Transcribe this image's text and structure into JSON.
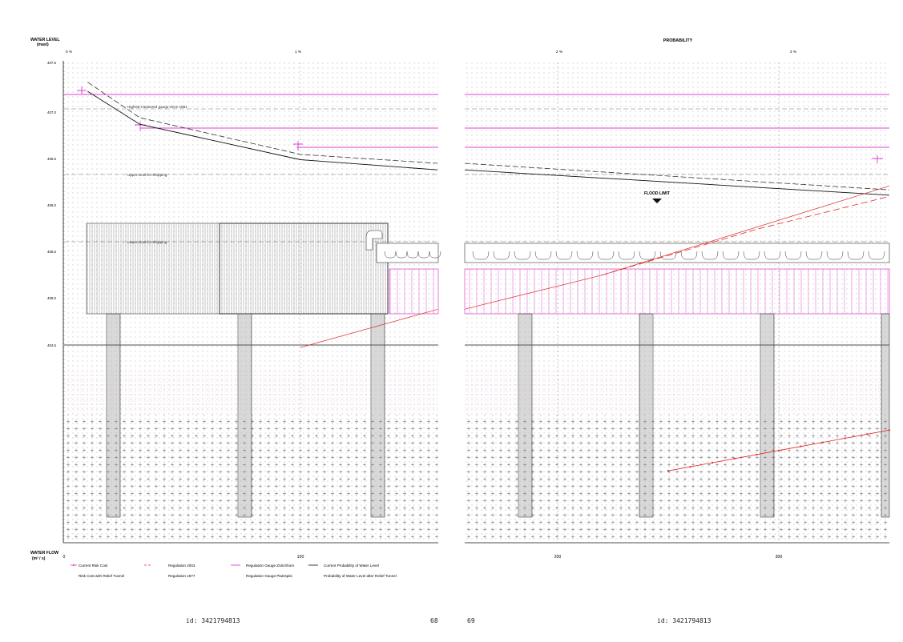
{
  "axes": {
    "y_title_line1": "WATER LEVEL",
    "y_title_line2": "(masl)",
    "x_bottom_title_line1": "WATER FLOW",
    "x_bottom_title_line2": "(m³ / s)",
    "x_top_title": "PROBABILITY"
  },
  "annotations": {
    "highest_gauge": "Highest measured gauge since 1881",
    "upper_shipping": "Upper Limit for Shipping",
    "lower_shipping": "Lower Limit for Shipping",
    "flood_limit": "FLOOD LIMIT"
  },
  "legend": {
    "current_risk": "Current Risk Cost",
    "risk_relief": "Risk Cost with Relief Tunnel",
    "reg_2003": "Regulation 2003",
    "reg_1977": "Regulation 1977",
    "gauge_zurichhorn": "Regulation Gauge Zürichhorn",
    "gauge_platzspitz": "Regulation Gauge Platzspitz",
    "current_prob": "Current Probability of Water Level",
    "prob_after": "Probability of Water Level after Relief Tunnel"
  },
  "footer": {
    "left_id": "id: 3421794813",
    "left_page": "68",
    "right_page": "69",
    "right_id": "id: 3421794813"
  },
  "colors": {
    "magenta": "#e040d0",
    "red": "#e02a2a",
    "black": "#111111",
    "grid": "#9a9a9a"
  },
  "chart_data": {
    "type": "line",
    "title": "",
    "xlabel": "WATER FLOW (m³ / s)",
    "ylabel": "WATER LEVEL (masl)",
    "x2label": "PROBABILITY",
    "xlim": [
      0,
      350
    ],
    "ylim": [
      405.0,
      407.5
    ],
    "x_ticks": [
      0,
      100,
      200,
      300
    ],
    "x2_ticks": [
      "0 %",
      "1 %",
      "2 %",
      "3 %"
    ],
    "y_ticks": [
      "407.5",
      "407.0",
      "406.5",
      "406.0",
      "405.5",
      "405.0",
      "404.5"
    ],
    "series": [
      {
        "name": "Current Probability of Water Level",
        "style": "solid-black",
        "x": [
          10,
          32,
          100,
          160,
          350
        ],
        "y": [
          407.45,
          407.2,
          406.93,
          406.85,
          406.66
        ]
      },
      {
        "name": "Probability of Water Level after Relief Tunnel",
        "style": "dashed-black",
        "x": [
          10,
          32,
          100,
          160,
          350
        ],
        "y": [
          407.52,
          407.25,
          406.97,
          406.9,
          406.7
        ]
      },
      {
        "name": "Current Risk Cost",
        "style": "red-marker",
        "x": [
          250,
          350
        ],
        "y": [
          404.56,
          404.87
        ]
      },
      {
        "name": "Risk Cost with Relief Tunnel",
        "style": "red-thin",
        "x": [
          100,
          160,
          220,
          350
        ],
        "y": [
          405.5,
          405.8,
          406.05,
          406.73
        ]
      },
      {
        "name": "Regulation 2003",
        "style": "red-dashed",
        "x": [
          220,
          290,
          350
        ],
        "y": [
          406.05,
          406.4,
          406.65
        ]
      }
    ],
    "levels": [
      {
        "label": "Regulation Gauge Zürichhorn",
        "y": 407.2
      },
      {
        "label": "Regulation Gauge Platzspitz",
        "y": 406.85
      },
      {
        "label": "Regulation 1977",
        "y": 406.66
      }
    ]
  }
}
